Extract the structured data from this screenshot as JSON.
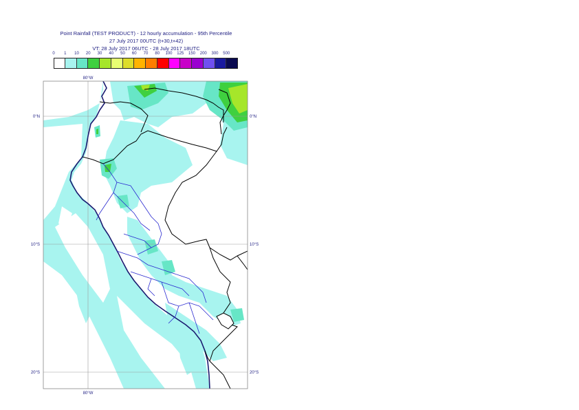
{
  "title": {
    "line1": "Point Rainfall (TEST PRODUCT) - 12 hourly accumulation - 95th Percentile",
    "line2": "27 July 2017 00UTC (t+30,t+42)",
    "line3": "VT: 28 July 2017 06UTC - 28 July 2017 18UTC"
  },
  "legend": {
    "ticks": [
      "0",
      "1",
      "10",
      "20",
      "30",
      "40",
      "50",
      "60",
      "70",
      "80",
      "100",
      "125",
      "150",
      "200",
      "300",
      "500"
    ],
    "colors": [
      "#ffffff",
      "#a8f4ef",
      "#67e6c6",
      "#3fd03f",
      "#a6e62a",
      "#e8ff72",
      "#dddd2a",
      "#ffb300",
      "#ff7d00",
      "#ff0000",
      "#ff00ff",
      "#c800c8",
      "#9a00d0",
      "#7050f0",
      "#1a1aa0",
      "#0a0a50"
    ]
  },
  "map": {
    "lon_labels": {
      "top": "80°W",
      "bottom": "80°W"
    },
    "lat_labels": [
      {
        "lat": "0°N"
      },
      {
        "lat": "10°S"
      },
      {
        "lat": "20°S"
      }
    ],
    "ocean_color": "#a8f4ef",
    "land_color": "#ffffff",
    "rain_colors": {
      "light": "#a8f4ef",
      "moderate": "#67e6c6",
      "heavy": "#3fd03f",
      "very_heavy": "#a6e62a"
    }
  }
}
